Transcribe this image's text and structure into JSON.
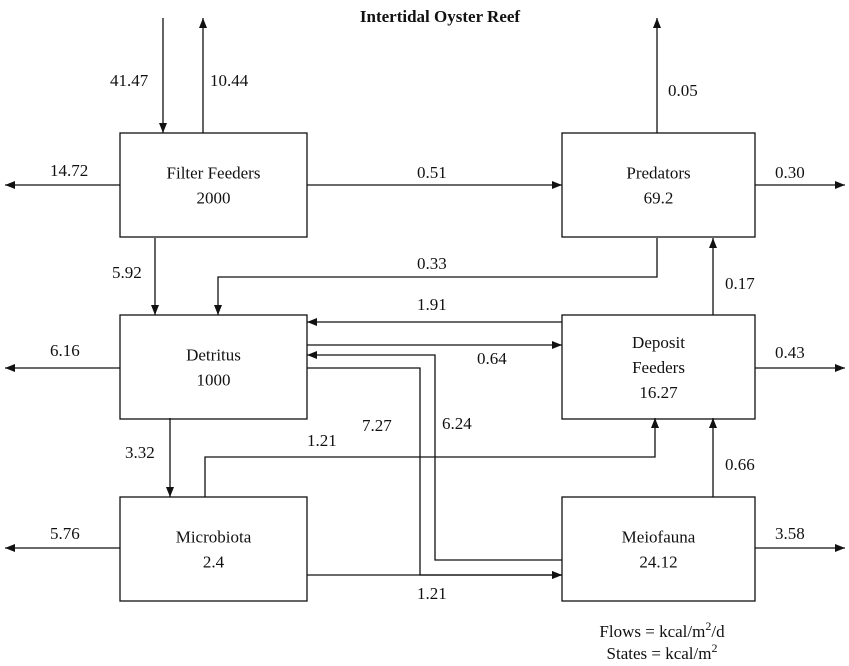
{
  "title": "Intertidal Oyster Reef",
  "nodes": [
    {
      "lines": [
        "Filter Feeders"
      ],
      "value": "2000"
    },
    {
      "lines": [
        "Predators"
      ],
      "value": "69.2"
    },
    {
      "lines": [
        "Detritus"
      ],
      "value": "1000"
    },
    {
      "lines": [
        "Deposit",
        "Feeders"
      ],
      "value": "16.27"
    },
    {
      "lines": [
        "Microbiota"
      ],
      "value": "2.4"
    },
    {
      "lines": [
        "Meiofauna"
      ],
      "value": "24.12"
    }
  ],
  "flows": [
    "41.47",
    "10.44",
    "14.72",
    "0.51",
    "0.05",
    "0.30",
    "0.33",
    "5.92",
    "1.91",
    "0.64",
    "0.17",
    "6.16",
    "0.43",
    "3.32",
    "1.21",
    "7.27",
    "6.24",
    "0.66",
    "5.76",
    "3.58",
    "1.21"
  ],
  "units": [
    {
      "text": "Flows = kcal/m",
      "sup": "2",
      "tail": "/d"
    },
    {
      "text": "States = kcal/m",
      "sup": "2",
      "tail": ""
    }
  ]
}
